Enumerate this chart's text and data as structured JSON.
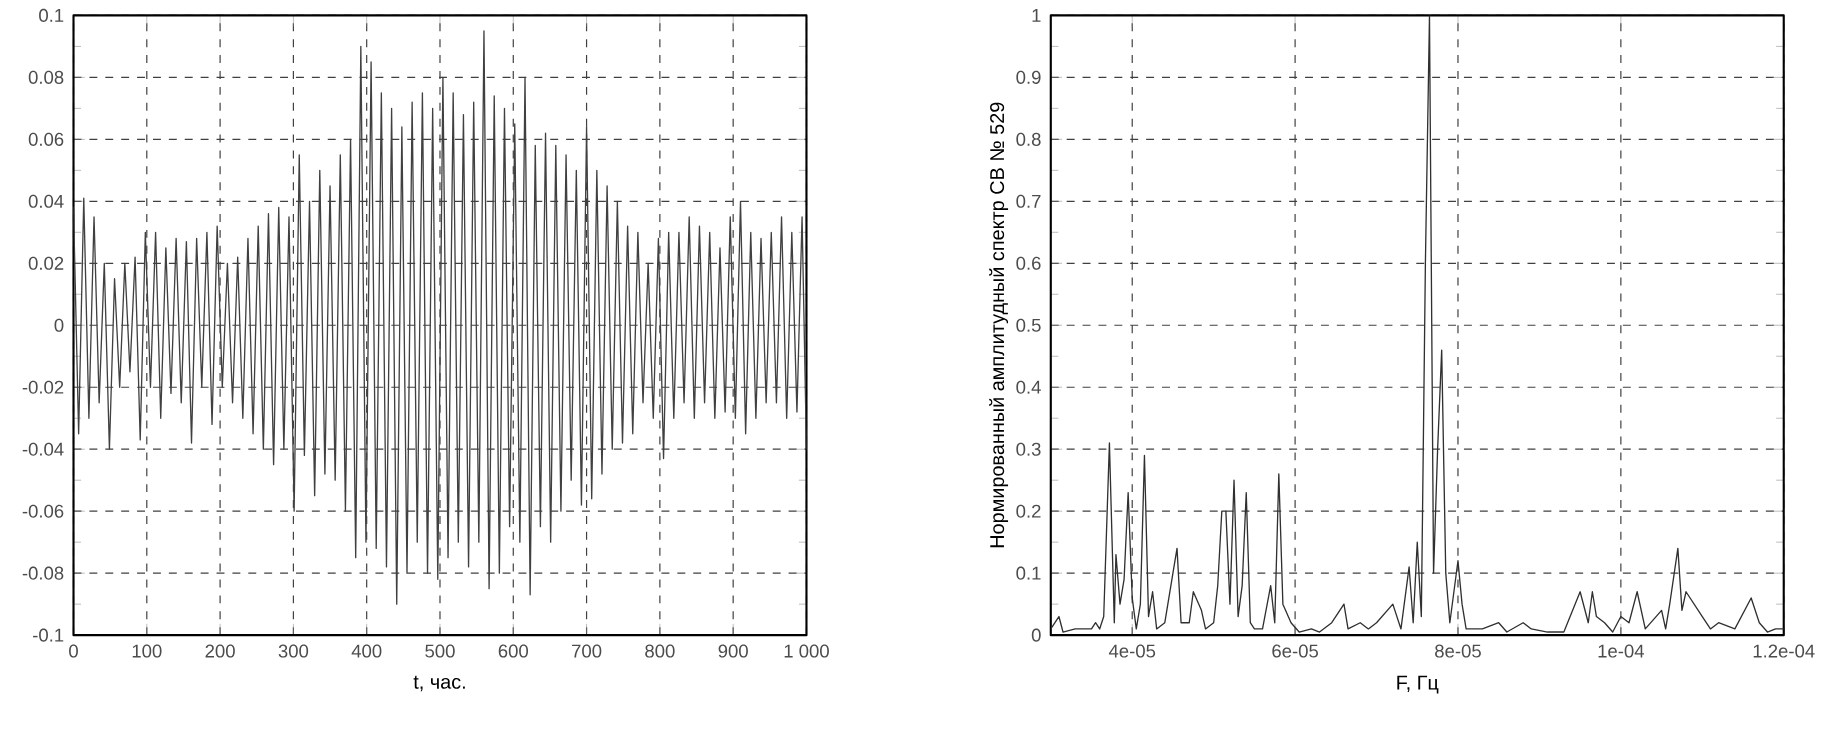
{
  "chart_data": [
    {
      "type": "line",
      "xlabel": "t, час.",
      "color": "#404040",
      "grid": true,
      "xlim": [
        0,
        1000
      ],
      "ylim": [
        -0.1,
        0.1
      ],
      "xticks": [
        0,
        100,
        200,
        300,
        400,
        500,
        600,
        700,
        800,
        900,
        {
          "value": 1000,
          "label": "1 000"
        }
      ],
      "yticks": [
        -0.1,
        -0.08,
        -0.06,
        -0.04,
        -0.02,
        0,
        0.02,
        0.04,
        0.06,
        0.08,
        0.1
      ],
      "x": [
        0,
        7,
        14,
        21,
        28,
        35,
        42,
        49,
        56,
        63,
        70,
        77,
        84,
        91,
        98,
        105,
        112,
        119,
        126,
        133,
        140,
        147,
        154,
        161,
        168,
        175,
        182,
        189,
        196,
        203,
        210,
        217,
        224,
        231,
        238,
        245,
        252,
        259,
        266,
        273,
        280,
        287,
        294,
        301,
        308,
        315,
        322,
        329,
        336,
        343,
        350,
        357,
        364,
        371,
        378,
        385,
        392,
        399,
        406,
        413,
        420,
        427,
        434,
        441,
        448,
        455,
        462,
        469,
        476,
        483,
        490,
        497,
        504,
        511,
        518,
        525,
        532,
        539,
        546,
        553,
        560,
        567,
        574,
        581,
        588,
        595,
        602,
        609,
        616,
        623,
        630,
        637,
        644,
        651,
        658,
        665,
        672,
        679,
        686,
        693,
        700,
        707,
        714,
        721,
        728,
        735,
        742,
        749,
        756,
        763,
        770,
        777,
        784,
        791,
        798,
        805,
        812,
        819,
        826,
        833,
        840,
        847,
        854,
        861,
        868,
        875,
        882,
        889,
        896,
        903,
        910,
        917,
        924,
        931,
        938,
        945,
        952,
        959,
        966,
        973,
        980,
        987,
        994,
        1000
      ],
      "values": [
        0.038,
        -0.035,
        0.041,
        -0.03,
        0.035,
        -0.025,
        0.02,
        -0.04,
        0.015,
        -0.02,
        0.02,
        -0.015,
        0.022,
        -0.037,
        0.03,
        -0.02,
        0.03,
        -0.03,
        0.025,
        -0.022,
        0.028,
        -0.025,
        0.027,
        -0.038,
        0.028,
        -0.02,
        0.03,
        -0.032,
        0.032,
        -0.02,
        0.02,
        -0.025,
        0.022,
        -0.03,
        0.028,
        -0.035,
        0.032,
        -0.04,
        0.036,
        -0.045,
        0.038,
        -0.04,
        0.035,
        -0.06,
        0.055,
        -0.042,
        0.04,
        -0.055,
        0.05,
        -0.048,
        0.045,
        -0.05,
        0.055,
        -0.06,
        0.06,
        -0.075,
        0.09,
        -0.07,
        0.085,
        -0.072,
        0.075,
        -0.078,
        0.07,
        -0.09,
        0.064,
        -0.08,
        0.072,
        -0.07,
        0.075,
        -0.08,
        0.07,
        -0.082,
        0.08,
        -0.075,
        0.075,
        -0.07,
        0.068,
        -0.078,
        0.072,
        -0.07,
        0.095,
        -0.085,
        0.074,
        -0.08,
        0.07,
        -0.065,
        0.065,
        -0.07,
        0.08,
        -0.087,
        0.058,
        -0.065,
        0.062,
        -0.07,
        0.058,
        -0.06,
        0.055,
        -0.05,
        0.05,
        -0.058,
        0.064,
        -0.056,
        0.05,
        -0.048,
        0.045,
        -0.04,
        0.04,
        -0.038,
        0.032,
        -0.035,
        0.03,
        -0.025,
        0.02,
        -0.03,
        0.028,
        -0.043,
        0.03,
        -0.03,
        0.03,
        -0.025,
        0.035,
        -0.03,
        0.032,
        -0.025,
        0.03,
        -0.03,
        0.025,
        -0.028,
        0.035,
        -0.03,
        0.04,
        -0.035,
        0.03,
        -0.03,
        0.028,
        -0.025,
        0.03,
        -0.025,
        0.035,
        -0.03,
        0.03,
        -0.028,
        0.035,
        -0.04
      ]
    },
    {
      "type": "line",
      "xlabel": "F, Гц",
      "ylabel": "Нормированный амплитудный спектр СВ № 529",
      "color": "#303030",
      "grid": true,
      "xlim": [
        3e-05,
        0.00012
      ],
      "ylim": [
        0,
        1
      ],
      "xticks": [
        {
          "value": 4e-05,
          "label": "4e-05"
        },
        {
          "value": 6e-05,
          "label": "6e-05"
        },
        {
          "value": 8e-05,
          "label": "8e-05"
        },
        {
          "value": 0.0001,
          "label": "1e-04"
        },
        {
          "value": 0.00012,
          "label": "1.2e-04"
        }
      ],
      "yticks": [
        0,
        0.1,
        0.2,
        0.3,
        0.4,
        0.5,
        0.6,
        0.7,
        0.8,
        0.9,
        1
      ],
      "x": [
        3e-05,
        3.1e-05,
        3.15e-05,
        3.3e-05,
        3.5e-05,
        3.55e-05,
        3.6e-05,
        3.65e-05,
        3.72e-05,
        3.78e-05,
        3.8e-05,
        3.85e-05,
        3.9e-05,
        3.95e-05,
        4e-05,
        4.05e-05,
        4.1e-05,
        4.15e-05,
        4.2e-05,
        4.25e-05,
        4.3e-05,
        4.4e-05,
        4.5e-05,
        4.55e-05,
        4.6e-05,
        4.7e-05,
        4.75e-05,
        4.85e-05,
        4.9e-05,
        5e-05,
        5.05e-05,
        5.1e-05,
        5.15e-05,
        5.2e-05,
        5.25e-05,
        5.3e-05,
        5.35e-05,
        5.4e-05,
        5.45e-05,
        5.5e-05,
        5.6e-05,
        5.7e-05,
        5.75e-05,
        5.8e-05,
        5.85e-05,
        5.95e-05,
        6.05e-05,
        6.2e-05,
        6.3e-05,
        6.45e-05,
        6.6e-05,
        6.65e-05,
        6.8e-05,
        6.9e-05,
        7e-05,
        7.2e-05,
        7.3e-05,
        7.4e-05,
        7.45e-05,
        7.5e-05,
        7.55e-05,
        7.6e-05,
        7.65e-05,
        7.7e-05,
        7.75e-05,
        7.8e-05,
        7.85e-05,
        7.9e-05,
        8e-05,
        8.05e-05,
        8.1e-05,
        8.3e-05,
        8.5e-05,
        8.6e-05,
        8.8e-05,
        8.9e-05,
        9.1e-05,
        9.3e-05,
        9.5e-05,
        9.6e-05,
        9.65e-05,
        9.7e-05,
        9.8e-05,
        9.9e-05,
        0.0001,
        0.000101,
        0.000102,
        0.000103,
        0.000105,
        0.0001055,
        0.000106,
        0.000107,
        0.0001075,
        0.000108,
        0.000109,
        0.00011,
        0.000111,
        0.000112,
        0.000114,
        0.000116,
        0.000117,
        0.000118,
        0.000119,
        0.00012
      ],
      "values": [
        0.01,
        0.03,
        0.005,
        0.01,
        0.01,
        0.02,
        0.01,
        0.03,
        0.31,
        0.02,
        0.13,
        0.05,
        0.09,
        0.23,
        0.06,
        0.01,
        0.05,
        0.29,
        0.03,
        0.07,
        0.01,
        0.02,
        0.1,
        0.14,
        0.02,
        0.02,
        0.07,
        0.04,
        0.01,
        0.02,
        0.08,
        0.2,
        0.2,
        0.05,
        0.25,
        0.03,
        0.08,
        0.23,
        0.02,
        0.01,
        0.01,
        0.08,
        0.02,
        0.26,
        0.05,
        0.02,
        0.005,
        0.01,
        0.005,
        0.02,
        0.05,
        0.01,
        0.02,
        0.01,
        0.02,
        0.05,
        0.01,
        0.11,
        0.02,
        0.15,
        0.03,
        0.6,
        1.0,
        0.1,
        0.3,
        0.46,
        0.1,
        0.02,
        0.12,
        0.05,
        0.01,
        0.01,
        0.02,
        0.005,
        0.02,
        0.01,
        0.005,
        0.005,
        0.07,
        0.02,
        0.07,
        0.03,
        0.02,
        0.005,
        0.03,
        0.02,
        0.07,
        0.01,
        0.04,
        0.01,
        0.05,
        0.14,
        0.04,
        0.07,
        0.05,
        0.03,
        0.01,
        0.02,
        0.01,
        0.06,
        0.02,
        0.005,
        0.01,
        0.01
      ]
    }
  ]
}
